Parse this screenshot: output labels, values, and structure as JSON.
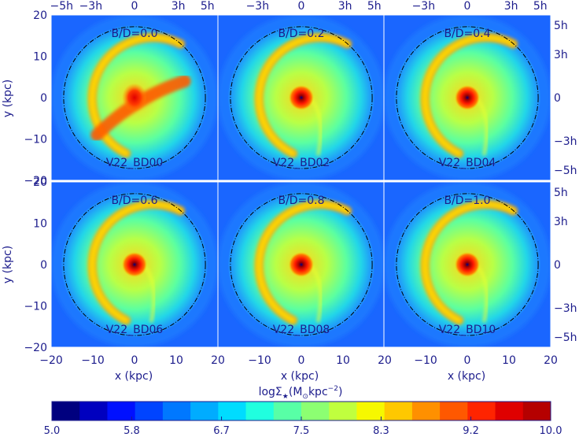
{
  "figure": {
    "colorbar": {
      "label_prefix": "logΣ",
      "label_sub": "★",
      "label_units_open": "(M",
      "label_units_sub": "⊙",
      "label_units_kpc": "kpc",
      "label_units_exp": "−2",
      "label_units_close": ")",
      "range": [
        5.0,
        10.0
      ],
      "ticks": [
        "5.0",
        "5.8",
        "6.7",
        "7.5",
        "8.3",
        "9.2",
        "10.0"
      ],
      "colors": [
        "#00007f",
        "#0000bf",
        "#0010ff",
        "#0044ff",
        "#0078ff",
        "#00acff",
        "#00dcff",
        "#20ffdf",
        "#58ffa6",
        "#8cff72",
        "#c0ff3e",
        "#f6f800",
        "#ffc800",
        "#ff9000",
        "#ff5800",
        "#ff2400",
        "#df0000",
        "#b50000"
      ]
    }
  },
  "chart_data": {
    "type": "heatmap",
    "xlabel": "x (kpc)",
    "ylabel": "y (kpc)",
    "xlim": [
      -20,
      20
    ],
    "ylim": [
      -20,
      20
    ],
    "xticks": [
      "−20",
      "−10",
      "0",
      "10",
      "20"
    ],
    "yticks": [
      "20",
      "10",
      "0",
      "−10",
      "−20"
    ],
    "top_ticks": [
      "−5h",
      "−3h",
      "0",
      "3h",
      "5h"
    ],
    "right_ticks": [
      "5h",
      "3h",
      "0",
      "−3h",
      "−5h"
    ],
    "panels": [
      {
        "ratio": "B/D=0.0",
        "model": "V22_BD00",
        "bar": true
      },
      {
        "ratio": "B/D=0.2",
        "model": "V22_BD02",
        "bar": false
      },
      {
        "ratio": "B/D=0.4",
        "model": "V22_BD04",
        "bar": false
      },
      {
        "ratio": "B/D=0.6",
        "model": "V22_BD06",
        "bar": false
      },
      {
        "ratio": "B/D=0.8",
        "model": "V22_BD08",
        "bar": false
      },
      {
        "ratio": "B/D=1.0",
        "model": "V22_BD10",
        "bar": false
      }
    ]
  }
}
